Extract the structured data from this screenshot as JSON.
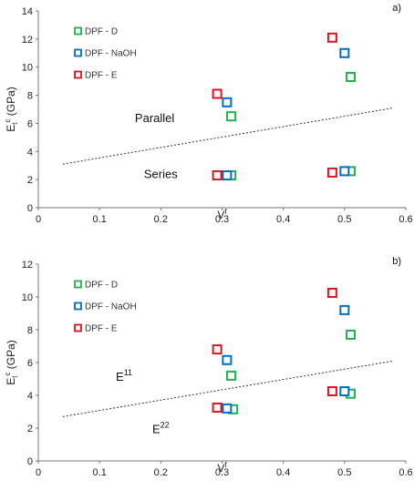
{
  "chart_data": [
    {
      "type": "scatter",
      "panel_label": "a)",
      "xlabel": "V",
      "xlabel_sup": "f",
      "ylabel_main": "E",
      "ylabel_sub": "t",
      "ylabel_sup": "c",
      "ylabel_rest": " (GPa)",
      "xlim": [
        0,
        0.6
      ],
      "ylim": [
        0,
        14
      ],
      "x_ticks": [
        0,
        0.1,
        0.2,
        0.3,
        0.4,
        0.5,
        0.6
      ],
      "x_tick_labels": [
        "0",
        "0.1",
        "0.2",
        "0.3",
        "0.4",
        "0.5",
        "0.6"
      ],
      "y_ticks": [
        0,
        2,
        4,
        6,
        8,
        10,
        12,
        14
      ],
      "y_tick_labels": [
        "0",
        "2",
        "4",
        "6",
        "8",
        "10",
        "12",
        "14"
      ],
      "grid": false,
      "legend_position": "top-left",
      "series": [
        {
          "name": "DPF - D",
          "color": "#22b14c",
          "marker": "open-square",
          "x": [
            0.315,
            0.315,
            0.51,
            0.51
          ],
          "y": [
            6.5,
            2.3,
            9.3,
            2.6
          ]
        },
        {
          "name": "DPF - NaOH",
          "color": "#0070c0",
          "marker": "open-square",
          "x": [
            0.308,
            0.308,
            0.5,
            0.5
          ],
          "y": [
            7.5,
            2.3,
            11.0,
            2.6
          ]
        },
        {
          "name": "DPF - E",
          "color": "#e0141e",
          "marker": "open-square",
          "x": [
            0.292,
            0.292,
            0.48,
            0.48
          ],
          "y": [
            8.1,
            2.3,
            12.1,
            2.5
          ]
        }
      ],
      "trendline": {
        "style": "dotted",
        "color": "#333333",
        "x": [
          0.04,
          0.58
        ],
        "y": [
          3.1,
          7.1
        ]
      },
      "annotations": [
        {
          "text": "Parallel",
          "x": 0.19,
          "y": 6.1
        },
        {
          "text": "Series",
          "x": 0.2,
          "y": 2.1
        }
      ]
    },
    {
      "type": "scatter",
      "panel_label": "b)",
      "xlabel": "V",
      "xlabel_sup": "f",
      "ylabel_main": "E",
      "ylabel_sub": "t",
      "ylabel_sup": "c",
      "ylabel_rest": " (GPa)",
      "xlim": [
        0,
        0.6
      ],
      "ylim": [
        0,
        12
      ],
      "x_ticks": [
        0,
        0.1,
        0.2,
        0.3,
        0.4,
        0.5,
        0.6
      ],
      "x_tick_labels": [
        "0",
        "0.1",
        "0.2",
        "0.3",
        "0.4",
        "0.5",
        "0.6"
      ],
      "y_ticks": [
        0,
        2,
        4,
        6,
        8,
        10,
        12
      ],
      "y_tick_labels": [
        "0",
        "2",
        "4",
        "6",
        "8",
        "10",
        "12"
      ],
      "grid": false,
      "legend_position": "top-left",
      "series": [
        {
          "name": "DPF - D",
          "color": "#22b14c",
          "marker": "open-square",
          "x": [
            0.315,
            0.318,
            0.51,
            0.51
          ],
          "y": [
            5.2,
            3.15,
            7.7,
            4.1
          ]
        },
        {
          "name": "DPF - NaOH",
          "color": "#0070c0",
          "marker": "open-square",
          "x": [
            0.308,
            0.308,
            0.5,
            0.5
          ],
          "y": [
            6.15,
            3.2,
            9.2,
            4.25
          ]
        },
        {
          "name": "DPF - E",
          "color": "#e0141e",
          "marker": "open-square",
          "x": [
            0.292,
            0.292,
            0.48,
            0.48
          ],
          "y": [
            6.8,
            3.25,
            10.25,
            4.25
          ]
        }
      ],
      "trendline": {
        "style": "dotted",
        "color": "#333333",
        "x": [
          0.04,
          0.58
        ],
        "y": [
          2.7,
          6.1
        ]
      },
      "annotations": [
        {
          "text": "E",
          "sup": "11",
          "x": 0.14,
          "y": 4.9
        },
        {
          "text": "E",
          "sup": "22",
          "x": 0.2,
          "y": 1.7
        }
      ]
    }
  ]
}
